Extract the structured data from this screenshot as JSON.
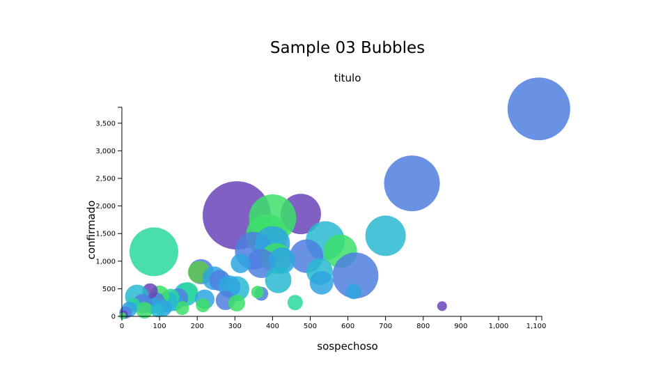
{
  "chart_data": {
    "type": "scatter",
    "title": "Sample 03 Bubbles",
    "subtitle": "titulo",
    "xlabel": "sospechoso",
    "ylabel": "confirmado",
    "xlim": [
      0,
      1100
    ],
    "ylim": [
      0,
      3750
    ],
    "x_ticks": [
      "0",
      "100",
      "200",
      "300",
      "400",
      "500",
      "600",
      "700",
      "800",
      "900",
      "1,000",
      "1,100"
    ],
    "y_ticks": [
      "0",
      "500",
      "1,000",
      "1,500",
      "2,000",
      "2,500",
      "3,000",
      "3,500"
    ],
    "grid": false,
    "legend": "none",
    "palette": [
      "#4f7fe0",
      "#6a44b8",
      "#28b8d0",
      "#2ad89e",
      "#3ddf6a",
      "#2ea4e0"
    ],
    "points": [
      {
        "x": 1107,
        "y": 3760,
        "r": 45,
        "color": "#4f7fe0"
      },
      {
        "x": 770,
        "y": 2410,
        "r": 40,
        "color": "#4f7fe0"
      },
      {
        "x": 305,
        "y": 1830,
        "r": 49,
        "color": "#6a44b8"
      },
      {
        "x": 475,
        "y": 1855,
        "r": 29,
        "color": "#6a44b8"
      },
      {
        "x": 400,
        "y": 1780,
        "r": 34,
        "color": "#3ddf6a"
      },
      {
        "x": 700,
        "y": 1460,
        "r": 29,
        "color": "#28b8d0"
      },
      {
        "x": 540,
        "y": 1370,
        "r": 28,
        "color": "#28b8d0"
      },
      {
        "x": 580,
        "y": 1180,
        "r": 24,
        "color": "#3ddf6a"
      },
      {
        "x": 620,
        "y": 740,
        "r": 33,
        "color": "#4f7fe0"
      },
      {
        "x": 85,
        "y": 1170,
        "r": 35,
        "color": "#2ad89e"
      },
      {
        "x": 385,
        "y": 1470,
        "r": 30,
        "color": "#3ddf6a"
      },
      {
        "x": 350,
        "y": 1190,
        "r": 27,
        "color": "#4f7fe0"
      },
      {
        "x": 400,
        "y": 1320,
        "r": 25,
        "color": "#2ea4e0"
      },
      {
        "x": 410,
        "y": 1050,
        "r": 22,
        "color": "#3ddf6a"
      },
      {
        "x": 490,
        "y": 1090,
        "r": 24,
        "color": "#4f7fe0"
      },
      {
        "x": 370,
        "y": 960,
        "r": 21,
        "color": "#4f7fe0"
      },
      {
        "x": 425,
        "y": 1010,
        "r": 19,
        "color": "#2ea4e0"
      },
      {
        "x": 525,
        "y": 810,
        "r": 19,
        "color": "#28b8d0"
      },
      {
        "x": 530,
        "y": 610,
        "r": 17,
        "color": "#2ea4e0"
      },
      {
        "x": 415,
        "y": 660,
        "r": 19,
        "color": "#28b8d0"
      },
      {
        "x": 315,
        "y": 960,
        "r": 14,
        "color": "#2ea4e0"
      },
      {
        "x": 210,
        "y": 810,
        "r": 18,
        "color": "#4f7fe0"
      },
      {
        "x": 205,
        "y": 800,
        "r": 16,
        "color": "#5ec84a"
      },
      {
        "x": 245,
        "y": 690,
        "r": 17,
        "color": "#2ea4e0"
      },
      {
        "x": 260,
        "y": 650,
        "r": 15,
        "color": "#4f7fe0"
      },
      {
        "x": 305,
        "y": 500,
        "r": 18,
        "color": "#28b8d0"
      },
      {
        "x": 285,
        "y": 540,
        "r": 16,
        "color": "#2ea4e0"
      },
      {
        "x": 275,
        "y": 290,
        "r": 14,
        "color": "#4f7fe0"
      },
      {
        "x": 305,
        "y": 240,
        "r": 12,
        "color": "#3ddf6a"
      },
      {
        "x": 370,
        "y": 410,
        "r": 10,
        "color": "#4f7fe0"
      },
      {
        "x": 360,
        "y": 440,
        "r": 9,
        "color": "#3ddf6a"
      },
      {
        "x": 460,
        "y": 250,
        "r": 11,
        "color": "#2ad89e"
      },
      {
        "x": 615,
        "y": 450,
        "r": 11,
        "color": "#2ea4e0"
      },
      {
        "x": 850,
        "y": 185,
        "r": 7,
        "color": "#6a44b8"
      },
      {
        "x": 170,
        "y": 400,
        "r": 17,
        "color": "#28b8d0"
      },
      {
        "x": 175,
        "y": 430,
        "r": 15,
        "color": "#2ad89e"
      },
      {
        "x": 220,
        "y": 310,
        "r": 14,
        "color": "#2ea4e0"
      },
      {
        "x": 215,
        "y": 200,
        "r": 10,
        "color": "#3ddf6a"
      },
      {
        "x": 150,
        "y": 330,
        "r": 14,
        "color": "#4f7fe0"
      },
      {
        "x": 140,
        "y": 250,
        "r": 12,
        "color": "#2ea4e0"
      },
      {
        "x": 160,
        "y": 150,
        "r": 10,
        "color": "#3ddf6a"
      },
      {
        "x": 130,
        "y": 350,
        "r": 12,
        "color": "#2ad89e"
      },
      {
        "x": 120,
        "y": 260,
        "r": 15,
        "color": "#28b8d0"
      },
      {
        "x": 100,
        "y": 380,
        "r": 14,
        "color": "#3ddf6a"
      },
      {
        "x": 90,
        "y": 270,
        "r": 13,
        "color": "#4f7fe0"
      },
      {
        "x": 80,
        "y": 200,
        "r": 12,
        "color": "#2ea4e0"
      },
      {
        "x": 75,
        "y": 460,
        "r": 11,
        "color": "#6a44b8"
      },
      {
        "x": 40,
        "y": 360,
        "r": 17,
        "color": "#28b8d0"
      },
      {
        "x": 55,
        "y": 230,
        "r": 14,
        "color": "#4f7fe0"
      },
      {
        "x": 60,
        "y": 110,
        "r": 12,
        "color": "#3ddf6a"
      },
      {
        "x": 30,
        "y": 210,
        "r": 10,
        "color": "#2ad89e"
      },
      {
        "x": 20,
        "y": 130,
        "r": 11,
        "color": "#2ea4e0"
      },
      {
        "x": 10,
        "y": 70,
        "r": 9,
        "color": "#4f7fe0"
      },
      {
        "x": 5,
        "y": 30,
        "r": 6,
        "color": "#6a44b8"
      },
      {
        "x": 2,
        "y": 10,
        "r": 5,
        "color": "#3ddf6a"
      },
      {
        "x": 110,
        "y": 150,
        "r": 12,
        "color": "#2ea4e0"
      },
      {
        "x": 95,
        "y": 110,
        "r": 10,
        "color": "#28b8d0"
      }
    ]
  }
}
